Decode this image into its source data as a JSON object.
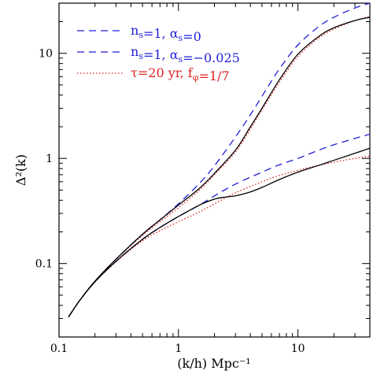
{
  "chart_data": {
    "type": "line",
    "title": "",
    "xlabel": "(k/h) Mpc⁻¹",
    "ylabel": "Δ²(k)",
    "xscale": "log",
    "yscale": "log",
    "xlim": [
      0.1,
      40
    ],
    "ylim": [
      0.02,
      30
    ],
    "xticks": [
      0.1,
      1,
      10
    ],
    "xtick_labels": [
      "0.1",
      "1",
      "10"
    ],
    "yticks": [
      0.1,
      1,
      10
    ],
    "ytick_labels": [
      "0.1",
      "1",
      "10"
    ],
    "grid": false,
    "legend_position": "top-left",
    "legend": [
      {
        "series": 0,
        "label_main": "n",
        "label_sub": "s",
        "label_rest": "=1,  α",
        "label_sub2": "s",
        "label_end": "=0"
      },
      {
        "series": 1,
        "label_main": "n",
        "label_sub": "s",
        "label_rest": "=1,  α",
        "label_sub2": "s",
        "label_end": "=−0.025"
      },
      {
        "series": 2,
        "label_main": "τ=20 yr,  f",
        "label_sub": "φ",
        "label_rest": "=1/7",
        "label_sub2": "",
        "label_end": ""
      }
    ],
    "series": [
      {
        "name": "ns=1, αs=0 (upper)",
        "color": "#1f1fd6",
        "dash": "dashed",
        "x": [
          0.12,
          0.15,
          0.2,
          0.3,
          0.5,
          0.7,
          1.0,
          1.5,
          2.0,
          3.0,
          4.0,
          5.0,
          7.0,
          10.0,
          15.0,
          20.0,
          30.0,
          40.0
        ],
        "y": [
          0.031,
          0.045,
          0.068,
          0.11,
          0.19,
          0.26,
          0.37,
          0.58,
          0.85,
          1.6,
          2.6,
          3.9,
          7.1,
          12.0,
          18.0,
          22.0,
          27.0,
          30.0
        ]
      },
      {
        "name": "ns=1, αs=0 (lower)",
        "color": "#1f1fd6",
        "dash": "dashed",
        "x": [
          0.12,
          0.15,
          0.2,
          0.3,
          0.5,
          0.7,
          1.0,
          1.5,
          2.0,
          3.0,
          5.0,
          7.0,
          10.0,
          15.0,
          20.0,
          30.0,
          40.0
        ],
        "y": [
          0.031,
          0.045,
          0.067,
          0.105,
          0.17,
          0.22,
          0.28,
          0.36,
          0.44,
          0.57,
          0.74,
          0.87,
          1.0,
          1.2,
          1.35,
          1.55,
          1.7
        ]
      },
      {
        "name": "ns=1, αs=−0.025 (upper)",
        "color": "#e02020",
        "dash": "dotted",
        "x": [
          0.12,
          0.15,
          0.2,
          0.3,
          0.5,
          0.7,
          1.0,
          1.5,
          2.0,
          3.0,
          4.0,
          5.0,
          7.0,
          10.0,
          15.0,
          20.0,
          30.0,
          40.0
        ],
        "y": [
          0.031,
          0.045,
          0.068,
          0.11,
          0.185,
          0.25,
          0.34,
          0.5,
          0.7,
          1.15,
          1.9,
          2.9,
          5.3,
          9.3,
          14.0,
          17.0,
          20.5,
          22.5
        ]
      },
      {
        "name": "ns=1, αs=−0.025 (lower)",
        "color": "#e02020",
        "dash": "dotted",
        "x": [
          0.12,
          0.15,
          0.2,
          0.3,
          0.5,
          0.7,
          1.0,
          1.5,
          2.0,
          3.0,
          5.0,
          7.0,
          10.0,
          15.0,
          20.0,
          30.0,
          40.0
        ],
        "y": [
          0.031,
          0.045,
          0.067,
          0.104,
          0.165,
          0.205,
          0.25,
          0.31,
          0.37,
          0.47,
          0.6,
          0.69,
          0.77,
          0.86,
          0.92,
          1.0,
          1.05
        ]
      },
      {
        "name": "τ=20 yr, fφ=1/7 (upper)",
        "color": "#000000",
        "dash": "solid",
        "x": [
          0.12,
          0.15,
          0.2,
          0.3,
          0.5,
          0.7,
          1.0,
          1.5,
          2.0,
          3.0,
          4.0,
          5.0,
          7.0,
          10.0,
          15.0,
          20.0,
          30.0,
          40.0
        ],
        "y": [
          0.031,
          0.045,
          0.068,
          0.11,
          0.19,
          0.26,
          0.36,
          0.52,
          0.72,
          1.2,
          2.0,
          3.0,
          5.6,
          9.8,
          14.5,
          17.5,
          20.5,
          22.0
        ]
      },
      {
        "name": "τ=20 yr, fφ=1/7 (lower)",
        "color": "#000000",
        "dash": "solid",
        "x": [
          0.12,
          0.15,
          0.2,
          0.3,
          0.5,
          0.7,
          1.0,
          1.5,
          2.0,
          2.5,
          3.0,
          4.0,
          5.0,
          7.0,
          10.0,
          15.0,
          20.0,
          30.0,
          40.0
        ],
        "y": [
          0.031,
          0.045,
          0.067,
          0.105,
          0.17,
          0.22,
          0.28,
          0.36,
          0.41,
          0.43,
          0.44,
          0.48,
          0.53,
          0.63,
          0.74,
          0.86,
          0.96,
          1.12,
          1.25
        ]
      }
    ]
  }
}
